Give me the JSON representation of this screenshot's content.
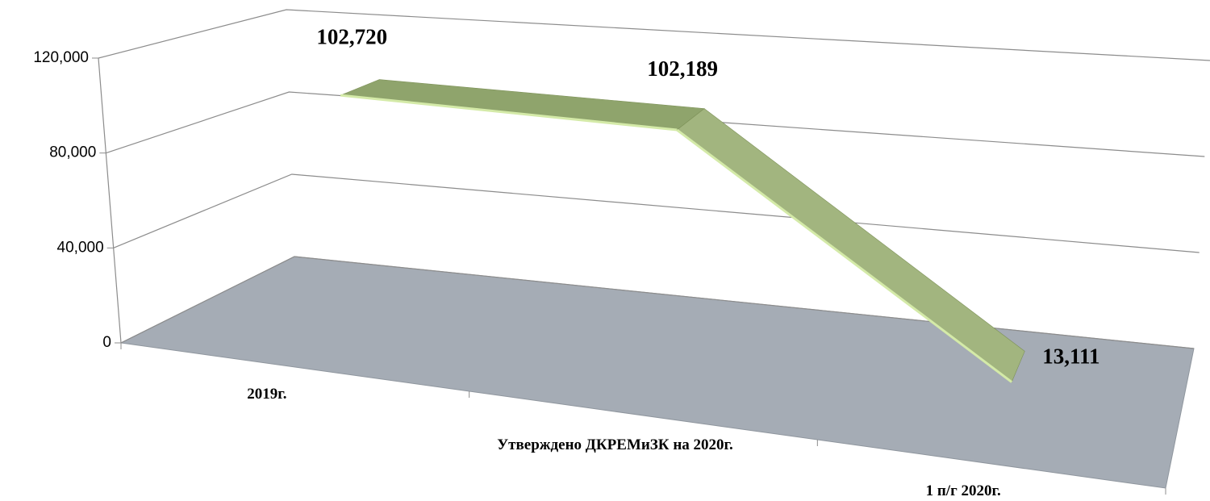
{
  "chart_data": {
    "type": "line",
    "categories": [
      "2019г.",
      "Утверждено ДКРЕМиЗК на 2020г.",
      "1 п/г 2020г."
    ],
    "values": [
      102720,
      102189,
      13111
    ],
    "value_labels": [
      "102,720",
      "102,189",
      "13,111"
    ],
    "color": "#a2b57f",
    "ylim": [
      0,
      120000
    ],
    "yticks": [
      0,
      {
        "value": 40000,
        "label": "40,000"
      },
      {
        "value": 80000,
        "label": "80,000"
      },
      {
        "value": 120000,
        "label": "120,000"
      }
    ],
    "grid": true
  }
}
